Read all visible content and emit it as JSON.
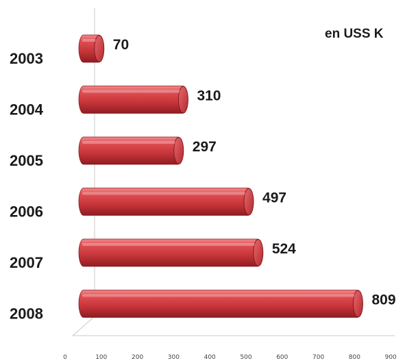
{
  "chart_data": {
    "type": "bar",
    "orientation": "horizontal",
    "categories": [
      "2003",
      "2004",
      "2005",
      "2006",
      "2007",
      "2008"
    ],
    "values": [
      70,
      310,
      297,
      497,
      524,
      809
    ],
    "data_labels": [
      "70",
      "310",
      "297",
      "497",
      "524",
      "809"
    ],
    "unit_label": "en USS K",
    "xlim": [
      0,
      900
    ],
    "x_ticks": [
      "0",
      "100",
      "200",
      "300",
      "400",
      "500",
      "600",
      "700",
      "800",
      "900"
    ],
    "grid": false,
    "bar_color": "#c8393e",
    "style": "3d-cylinder"
  }
}
